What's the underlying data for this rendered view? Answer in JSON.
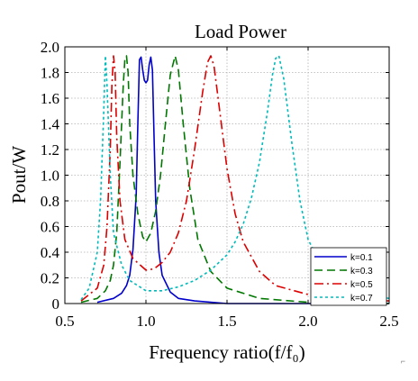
{
  "chart_data": {
    "type": "line",
    "title": "Load Power",
    "xlabel": "Frequency ratio(f/f₀)",
    "ylabel": "Pout/W",
    "xlim": [
      0.5,
      2.5
    ],
    "ylim": [
      0,
      2.0
    ],
    "xticks": [
      0.5,
      1.0,
      1.5,
      2.0,
      2.5
    ],
    "xtick_labels": [
      "0.5",
      "1.0",
      "1.5",
      "2.0",
      "2.5"
    ],
    "yticks": [
      0,
      0.2,
      0.4,
      0.6,
      0.8,
      1.0,
      1.2,
      1.4,
      1.6,
      1.8,
      2.0
    ],
    "ytick_labels": [
      "0",
      "0.2",
      "0.4",
      "0.6",
      "0.8",
      "1.0",
      "1.2",
      "1.4",
      "1.6",
      "1.8",
      "2.0"
    ],
    "grid": true,
    "legend_position": "bottom-right",
    "series": [
      {
        "name": "k=0.1",
        "color": "#0000cc",
        "dash": "solid",
        "points": [
          [
            0.7,
            0.01
          ],
          [
            0.8,
            0.04
          ],
          [
            0.85,
            0.08
          ],
          [
            0.88,
            0.14
          ],
          [
            0.9,
            0.22
          ],
          [
            0.92,
            0.42
          ],
          [
            0.94,
            0.85
          ],
          [
            0.95,
            1.4
          ],
          [
            0.96,
            1.9
          ],
          [
            0.97,
            1.92
          ],
          [
            0.98,
            1.82
          ],
          [
            0.99,
            1.74
          ],
          [
            1.0,
            1.72
          ],
          [
            1.01,
            1.74
          ],
          [
            1.02,
            1.86
          ],
          [
            1.03,
            1.92
          ],
          [
            1.04,
            1.82
          ],
          [
            1.05,
            1.3
          ],
          [
            1.06,
            0.8
          ],
          [
            1.08,
            0.4
          ],
          [
            1.1,
            0.22
          ],
          [
            1.15,
            0.09
          ],
          [
            1.2,
            0.04
          ],
          [
            1.3,
            0.02
          ],
          [
            1.5,
            0.0
          ],
          [
            2.5,
            0.0
          ]
        ]
      },
      {
        "name": "k=0.3",
        "color": "#007700",
        "dash": "dashed",
        "points": [
          [
            0.6,
            0.01
          ],
          [
            0.7,
            0.04
          ],
          [
            0.75,
            0.1
          ],
          [
            0.78,
            0.18
          ],
          [
            0.8,
            0.3
          ],
          [
            0.82,
            0.55
          ],
          [
            0.84,
            1.1
          ],
          [
            0.86,
            1.7
          ],
          [
            0.87,
            1.9
          ],
          [
            0.88,
            1.93
          ],
          [
            0.89,
            1.8
          ],
          [
            0.9,
            1.4
          ],
          [
            0.92,
            1.0
          ],
          [
            0.95,
            0.7
          ],
          [
            0.98,
            0.52
          ],
          [
            1.0,
            0.48
          ],
          [
            1.03,
            0.55
          ],
          [
            1.06,
            0.72
          ],
          [
            1.09,
            1.0
          ],
          [
            1.12,
            1.4
          ],
          [
            1.15,
            1.78
          ],
          [
            1.18,
            1.93
          ],
          [
            1.2,
            1.82
          ],
          [
            1.23,
            1.4
          ],
          [
            1.27,
            0.9
          ],
          [
            1.32,
            0.5
          ],
          [
            1.4,
            0.25
          ],
          [
            1.5,
            0.12
          ],
          [
            1.7,
            0.04
          ],
          [
            2.0,
            0.01
          ],
          [
            2.5,
            0.0
          ]
        ]
      },
      {
        "name": "k=0.5",
        "color": "#dd0000",
        "dash": "dashdot",
        "points": [
          [
            0.6,
            0.02
          ],
          [
            0.7,
            0.12
          ],
          [
            0.74,
            0.3
          ],
          [
            0.76,
            0.6
          ],
          [
            0.78,
            1.2
          ],
          [
            0.79,
            1.7
          ],
          [
            0.8,
            1.93
          ],
          [
            0.81,
            1.8
          ],
          [
            0.82,
            1.3
          ],
          [
            0.84,
            0.8
          ],
          [
            0.87,
            0.5
          ],
          [
            0.92,
            0.35
          ],
          [
            1.0,
            0.26
          ],
          [
            1.05,
            0.27
          ],
          [
            1.1,
            0.32
          ],
          [
            1.15,
            0.4
          ],
          [
            1.2,
            0.55
          ],
          [
            1.25,
            0.8
          ],
          [
            1.3,
            1.2
          ],
          [
            1.35,
            1.65
          ],
          [
            1.38,
            1.88
          ],
          [
            1.4,
            1.93
          ],
          [
            1.42,
            1.85
          ],
          [
            1.45,
            1.55
          ],
          [
            1.5,
            1.05
          ],
          [
            1.55,
            0.7
          ],
          [
            1.6,
            0.48
          ],
          [
            1.7,
            0.25
          ],
          [
            1.8,
            0.14
          ],
          [
            2.0,
            0.07
          ],
          [
            2.2,
            0.03
          ],
          [
            2.5,
            0.02
          ]
        ]
      },
      {
        "name": "k=0.7",
        "color": "#00bbbb",
        "dash": "dotted",
        "points": [
          [
            0.6,
            0.03
          ],
          [
            0.65,
            0.12
          ],
          [
            0.7,
            0.4
          ],
          [
            0.72,
            0.8
          ],
          [
            0.74,
            1.5
          ],
          [
            0.75,
            1.93
          ],
          [
            0.76,
            1.7
          ],
          [
            0.78,
            1.0
          ],
          [
            0.8,
            0.55
          ],
          [
            0.85,
            0.3
          ],
          [
            0.9,
            0.18
          ],
          [
            1.0,
            0.1
          ],
          [
            1.1,
            0.1
          ],
          [
            1.2,
            0.13
          ],
          [
            1.3,
            0.18
          ],
          [
            1.4,
            0.26
          ],
          [
            1.5,
            0.38
          ],
          [
            1.55,
            0.48
          ],
          [
            1.6,
            0.62
          ],
          [
            1.65,
            0.82
          ],
          [
            1.7,
            1.1
          ],
          [
            1.75,
            1.5
          ],
          [
            1.78,
            1.78
          ],
          [
            1.8,
            1.91
          ],
          [
            1.82,
            1.93
          ],
          [
            1.85,
            1.75
          ],
          [
            1.9,
            1.25
          ],
          [
            1.95,
            0.8
          ],
          [
            2.0,
            0.5
          ],
          [
            2.1,
            0.25
          ],
          [
            2.2,
            0.14
          ],
          [
            2.3,
            0.08
          ],
          [
            2.5,
            0.04
          ]
        ]
      }
    ]
  }
}
